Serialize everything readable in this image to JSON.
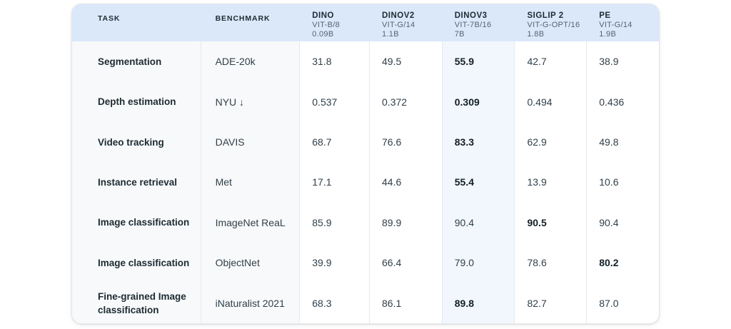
{
  "table": {
    "header": {
      "task_label": "TASK",
      "benchmark_label": "BENCHMARK",
      "models": [
        {
          "name": "DINO",
          "arch": "VIT-B/8",
          "params": "0.09B",
          "highlighted": false
        },
        {
          "name": "DINOV2",
          "arch": "VIT-G/14",
          "params": "1.1B",
          "highlighted": false
        },
        {
          "name": "DINOV3",
          "arch": "VIT-7B/16",
          "params": "7B",
          "highlighted": true
        },
        {
          "name": "SIGLIP 2",
          "arch": "VIT-G-OPT/16",
          "params": "1.8B",
          "highlighted": false
        },
        {
          "name": "PE",
          "arch": "VIT-G/14",
          "params": "1.9B",
          "highlighted": false
        }
      ]
    },
    "rows": [
      {
        "task": "Segmentation",
        "benchmark": "ADE-20k",
        "values": [
          "31.8",
          "49.5",
          "55.9",
          "42.7",
          "38.9"
        ],
        "best_col": 2
      },
      {
        "task": "Depth estimation",
        "benchmark": "NYU ↓",
        "values": [
          "0.537",
          "0.372",
          "0.309",
          "0.494",
          "0.436"
        ],
        "best_col": 2
      },
      {
        "task": "Video tracking",
        "benchmark": "DAVIS",
        "values": [
          "68.7",
          "76.6",
          "83.3",
          "62.9",
          "49.8"
        ],
        "best_col": 2
      },
      {
        "task": "Instance retrieval",
        "benchmark": "Met",
        "values": [
          "17.1",
          "44.6",
          "55.4",
          "13.9",
          "10.6"
        ],
        "best_col": 2
      },
      {
        "task": "Image classification",
        "benchmark": "ImageNet ReaL",
        "values": [
          "85.9",
          "89.9",
          "90.4",
          "90.5",
          "90.4"
        ],
        "best_col": 3
      },
      {
        "task": "Image classification",
        "benchmark": "ObjectNet",
        "values": [
          "39.9",
          "66.4",
          "79.0",
          "78.6",
          "80.2"
        ],
        "best_col": 4
      },
      {
        "task": "Fine-grained Image classification",
        "benchmark": "iNaturalist 2021",
        "values": [
          "68.3",
          "86.1",
          "89.8",
          "82.7",
          "87.0"
        ],
        "best_col": 2
      }
    ]
  },
  "colors": {
    "header_bg": "#dbe8fa",
    "highlight_column_bg": "#f1f7fd",
    "label_columns_bg": "#f8f9fa",
    "divider": "#e6e9ed",
    "text_dark": "#1c2b33",
    "text_sub": "#54646e"
  }
}
